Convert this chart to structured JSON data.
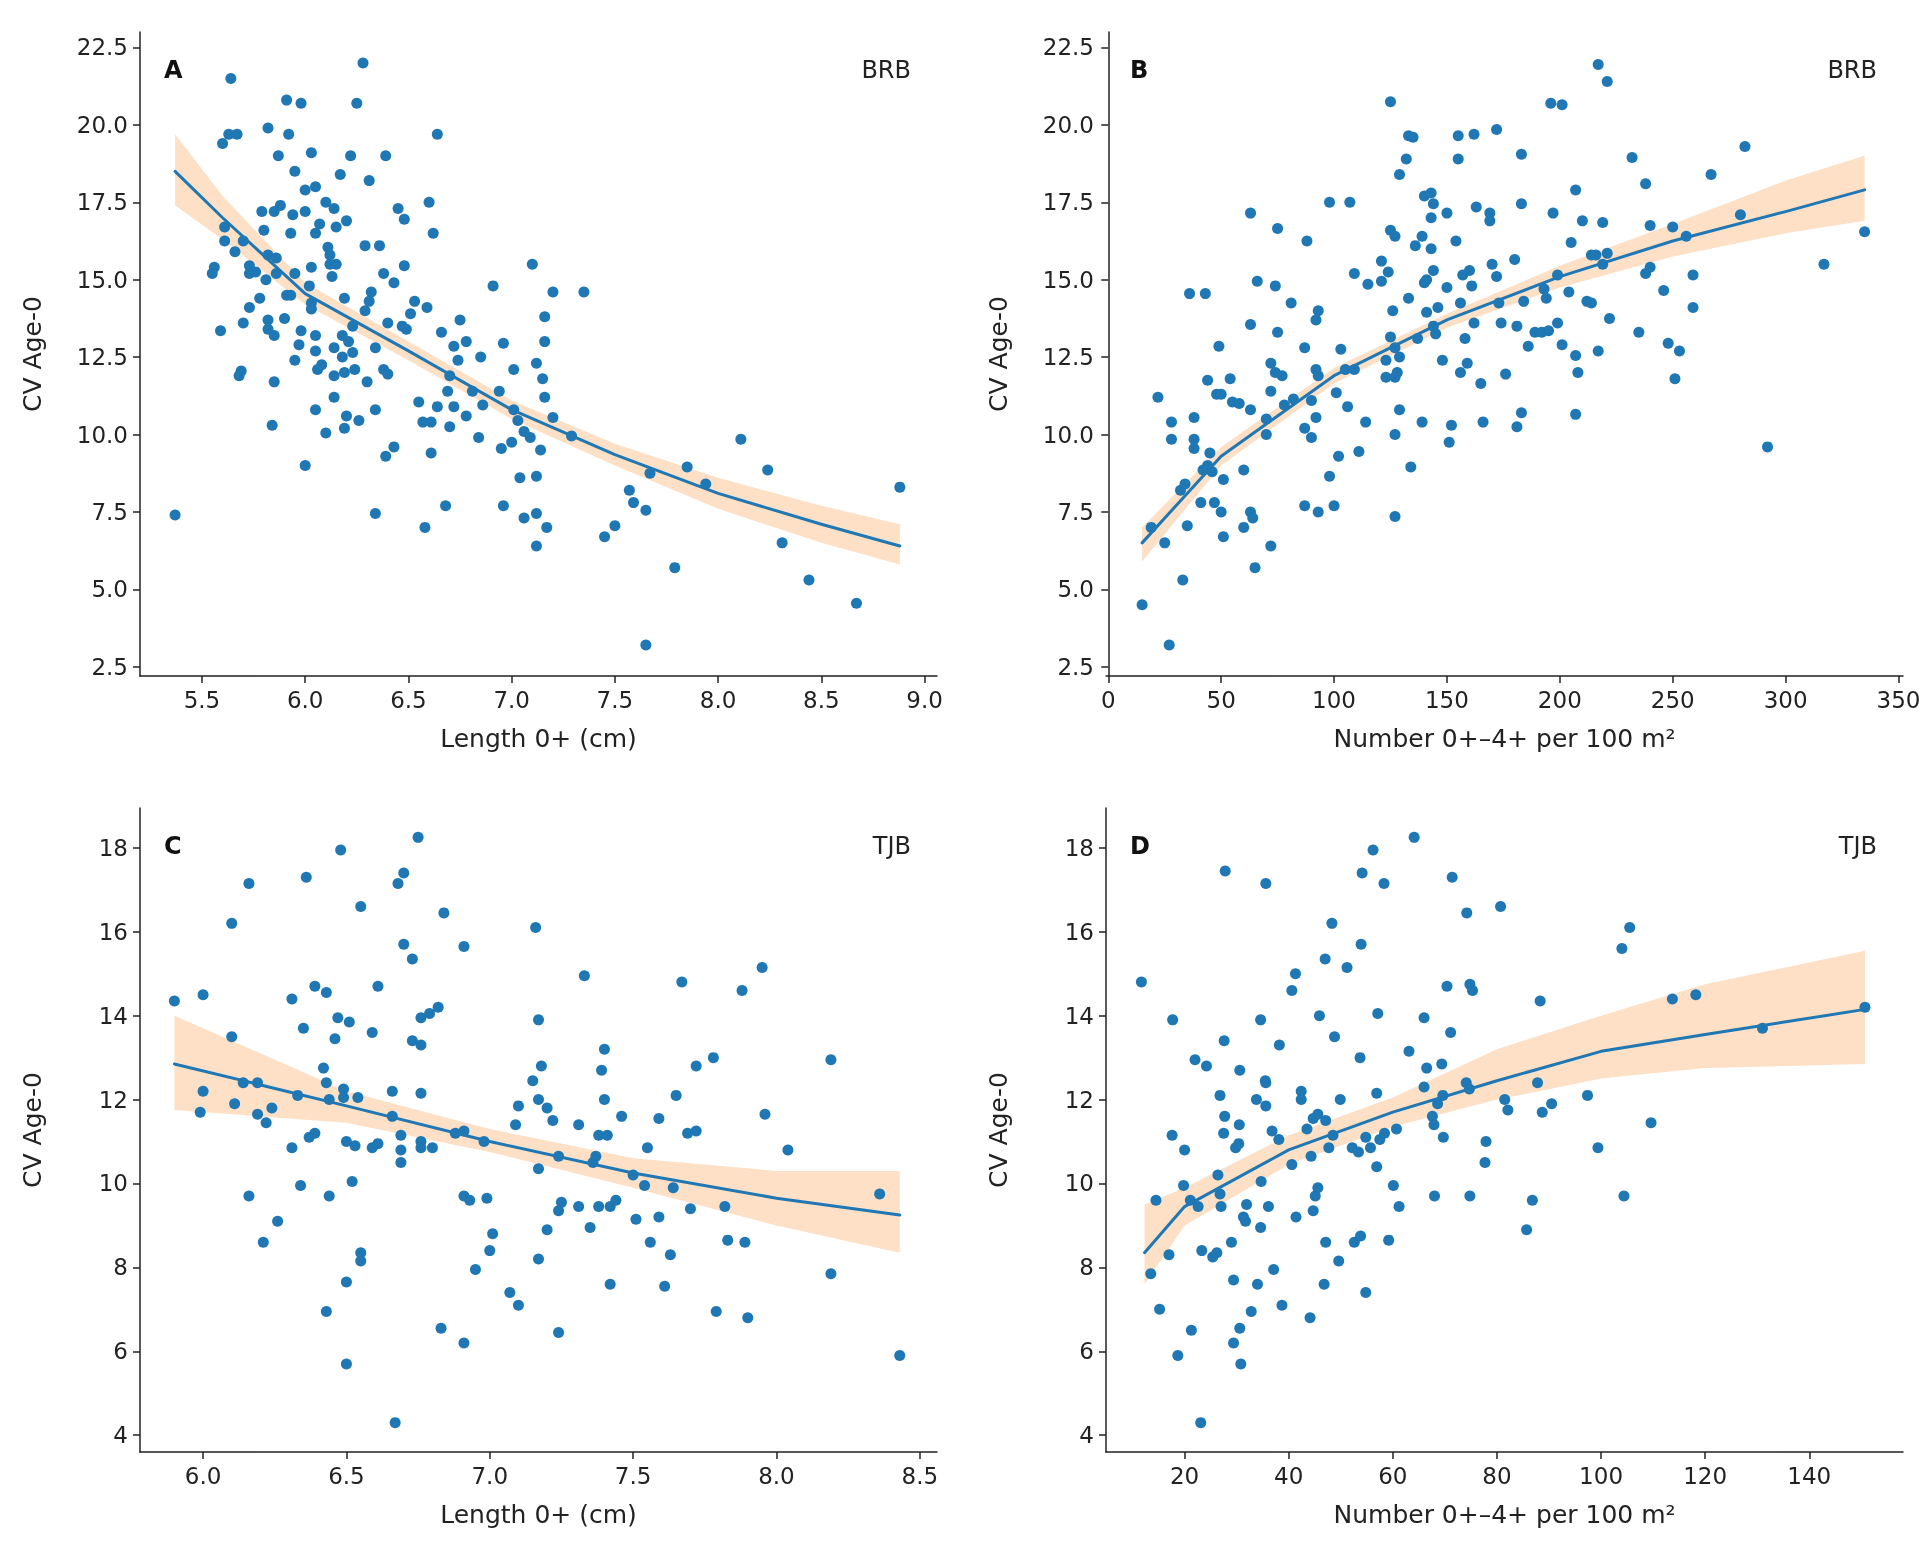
{
  "chart_data": [
    {
      "type": "scatter",
      "title": "A",
      "annotations": [
        "BRB"
      ],
      "xlabel": "Length 0+ (cm)",
      "ylabel": "CV Age-0",
      "xlim": [
        5.2,
        9.06
      ],
      "xticks": [
        5.5,
        {
          "value": 6,
          "label": "6.0"
        },
        6.5,
        {
          "value": 7,
          "label": "7.0"
        },
        7.5,
        {
          "value": 8,
          "label": "8.0"
        },
        8.5,
        {
          "value": 9,
          "label": "9.0"
        }
      ],
      "ylim": [
        2.2,
        23.0
      ],
      "yticks": [
        2.5,
        {
          "value": 5,
          "label": "5.0"
        },
        7.5,
        {
          "value": 10,
          "label": "10.0"
        },
        12.5,
        {
          "value": 15,
          "label": "15.0"
        },
        17.5,
        {
          "value": 20,
          "label": "20.0"
        },
        22.5
      ],
      "series": [
        {
          "type": "scatter",
          "marker": "circle",
          "color": "#1f77b4",
          "x": [
            5.37,
            5.64,
            6.28,
            5.91,
            5.98,
            6.25,
            5.6,
            5.63,
            5.67,
            5.82,
            5.92,
            6.64,
            5.87,
            6.03,
            6.22,
            6.39,
            5.95,
            6.17,
            6.31,
            6.0,
            6.05,
            6.6,
            6.1,
            5.79,
            5.85,
            5.88,
            5.94,
            6.0,
            6.14,
            6.2,
            6.45,
            6.48,
            6.62,
            5.61,
            5.8,
            6.07,
            6.15,
            5.93,
            6.05,
            5.61,
            5.7,
            5.66,
            6.29,
            6.36,
            5.82,
            5.86,
            6.11,
            6.12,
            5.56,
            5.55,
            5.73,
            5.73,
            5.76,
            5.81,
            5.86,
            5.95,
            6.03,
            6.12,
            6.15,
            6.13,
            6.38,
            6.48,
            7.1,
            5.91,
            5.93,
            6.02,
            6.19,
            6.32,
            6.43,
            6.91,
            7.2,
            7.35,
            5.78,
            5.73,
            6.03,
            6.03,
            6.31,
            6.53,
            6.59,
            6.29,
            5.7,
            5.82,
            5.82,
            5.9,
            5.59,
            5.85,
            5.98,
            6.05,
            6.4,
            6.47,
            6.49,
            6.51,
            6.75,
            7.16,
            6.66,
            6.18,
            6.23,
            6.21,
            6.34,
            5.97,
            6.05,
            6.78,
            6.72,
            6.96,
            7.16,
            6.14,
            6.18,
            6.23,
            6.85,
            7.12,
            6.74,
            5.95,
            5.69,
            5.68,
            6.06,
            6.08,
            6.24,
            6.19,
            6.14,
            6.3,
            6.38,
            6.4,
            7.01,
            7.15,
            6.7,
            5.85,
            6.69,
            6.81,
            7.16,
            6.14,
            6.55,
            6.64,
            6.72,
            6.86,
            6.94,
            7.01,
            6.05,
            6.34,
            6.2,
            6.78,
            7.2,
            6.57,
            6.61,
            7.03,
            6.26,
            5.84,
            6.19,
            6.7,
            6.1,
            7.06,
            7.09,
            7.29,
            6.84,
            8.11,
            7.0,
            6.95,
            7.14,
            6.43,
            6.39,
            6.61,
            6.0,
            7.85,
            8.24,
            7.67,
            7.04,
            7.12,
            7.94,
            8.88,
            7.57,
            7.59,
            6.68,
            6.96,
            6.34,
            7.12,
            7.65,
            7.06,
            6.58,
            7.17,
            7.5,
            7.45,
            7.12,
            8.31,
            7.79,
            8.44,
            8.67,
            7.65
          ],
          "values": [
            7.4,
            21.5,
            22.0,
            20.8,
            20.7,
            20.7,
            19.4,
            19.7,
            19.7,
            19.9,
            19.7,
            19.7,
            19.0,
            19.1,
            19.0,
            19.0,
            18.5,
            18.4,
            18.2,
            17.9,
            18.0,
            17.5,
            17.5,
            17.2,
            17.2,
            17.4,
            17.1,
            17.2,
            17.3,
            16.9,
            17.3,
            16.95,
            16.5,
            16.7,
            16.6,
            16.8,
            16.7,
            16.5,
            16.5,
            16.25,
            16.25,
            15.9,
            16.1,
            16.1,
            15.8,
            15.7,
            16.05,
            15.8,
            15.4,
            15.2,
            15.45,
            15.2,
            15.25,
            15.0,
            15.2,
            15.2,
            15.4,
            15.5,
            15.5,
            15.1,
            15.2,
            15.45,
            15.5,
            14.5,
            14.5,
            14.8,
            14.4,
            14.6,
            14.9,
            14.8,
            14.6,
            14.6,
            14.4,
            14.1,
            14.25,
            14.05,
            14.3,
            14.3,
            14.1,
            14.0,
            13.6,
            13.7,
            13.4,
            13.75,
            13.35,
            13.2,
            13.35,
            13.2,
            13.6,
            13.5,
            13.4,
            13.9,
            13.7,
            13.8,
            13.3,
            13.2,
            13.5,
            13.0,
            12.8,
            12.9,
            12.7,
            13.0,
            12.85,
            12.95,
            13.0,
            12.8,
            12.5,
            12.65,
            12.5,
            12.3,
            12.4,
            12.4,
            12.05,
            11.9,
            12.1,
            12.25,
            12.1,
            12.0,
            11.9,
            11.7,
            12.1,
            11.95,
            12.1,
            11.8,
            11.9,
            11.7,
            11.4,
            11.4,
            11.2,
            11.2,
            11.05,
            10.9,
            10.9,
            10.95,
            11.4,
            10.8,
            10.8,
            10.8,
            10.6,
            10.6,
            10.55,
            10.4,
            10.4,
            10.45,
            10.45,
            10.3,
            10.2,
            10.25,
            10.05,
            10.1,
            9.9,
            9.95,
            9.9,
            9.85,
            9.75,
            9.55,
            9.5,
            9.6,
            9.3,
            9.4,
            9.0,
            8.95,
            8.85,
            8.75,
            8.6,
            8.65,
            8.4,
            8.3,
            8.2,
            7.8,
            7.7,
            7.7,
            7.45,
            7.45,
            7.55,
            7.3,
            7.0,
            7.0,
            7.05,
            6.7,
            6.4,
            6.5,
            5.7,
            5.3,
            4.55,
            3.2
          ]
        },
        {
          "type": "line",
          "marker": "none",
          "color": "#1f77b4",
          "x": [
            5.37,
            5.6,
            6.0,
            6.5,
            7.0,
            7.5,
            8.0,
            8.5,
            8.88
          ],
          "values": [
            18.5,
            17.0,
            14.55,
            12.7,
            10.8,
            9.35,
            8.1,
            7.1,
            6.4
          ],
          "lower": [
            17.4,
            16.3,
            14.2,
            12.4,
            10.5,
            9.0,
            7.6,
            6.5,
            5.8
          ],
          "upper": [
            19.7,
            17.7,
            14.9,
            13.0,
            11.1,
            9.7,
            8.6,
            7.7,
            7.1
          ]
        }
      ]
    },
    {
      "type": "scatter",
      "title": "B",
      "annotations": [
        "BRB"
      ],
      "xlabel": "Number 0+–4+ per 100 m²",
      "ylabel": "CV Age-0",
      "xlim": [
        -1,
        352
      ],
      "xticks": [
        0,
        50,
        100,
        150,
        200,
        250,
        300,
        350
      ],
      "ylim": [
        2.2,
        23.0
      ],
      "yticks": [
        2.5,
        {
          "value": 5,
          "label": "5.0"
        },
        7.5,
        {
          "value": 10,
          "label": "10.0"
        },
        12.5,
        {
          "value": 15,
          "label": "15.0"
        },
        17.5,
        {
          "value": 20,
          "label": "20.0"
        },
        22.5
      ],
      "series": [
        {
          "type": "scatter",
          "marker": "circle",
          "color": "#1f77b4",
          "x": [
            15,
            27,
            33,
            19,
            25,
            35,
            22,
            28,
            28,
            38,
            38,
            38,
            36,
            43,
            44,
            49,
            48,
            50,
            54,
            45,
            44,
            42,
            46,
            32,
            34,
            41,
            47,
            50,
            51,
            51,
            60,
            63,
            64,
            60,
            65,
            72,
            63,
            63,
            66,
            58,
            63,
            55,
            70,
            70,
            72,
            72,
            74,
            75,
            74,
            75,
            77,
            78,
            81,
            82,
            87,
            88,
            87,
            87,
            90,
            90,
            92,
            93,
            93,
            92,
            93,
            92,
            98,
            98,
            100,
            101,
            102,
            103,
            105,
            106,
            107,
            109,
            109,
            111,
            114,
            115,
            121,
            121,
            123,
            123,
            124,
            125,
            125,
            127,
            126,
            125,
            127,
            127,
            128,
            129,
            129,
            127,
            127,
            129,
            132,
            133,
            135,
            133,
            134,
            136,
            137,
            139,
            139,
            141,
            140,
            141,
            140,
            143,
            143,
            143,
            144,
            144,
            144,
            145,
            146,
            150,
            150,
            148,
            151,
            152,
            154,
            156,
            155,
            155,
            156,
            157,
            158,
            159,
            160,
            161,
            162,
            162,
            163,
            165,
            166,
            169,
            169,
            170,
            172,
            172,
            173,
            174,
            176,
            180,
            181,
            183,
            183,
            184,
            183,
            181,
            186,
            189,
            192,
            195,
            193,
            194,
            196,
            201,
            197,
            199,
            199,
            201,
            204,
            205,
            207,
            207,
            208,
            207,
            210,
            212,
            214,
            214,
            217,
            217,
            221,
            219,
            219,
            222,
            216,
            221,
            232,
            235,
            238,
            238,
            240,
            240,
            246,
            248,
            250,
            251,
            253,
            256,
            259,
            259,
            267,
            280,
            282,
            292,
            317,
            335
          ],
          "values": [
            4.5,
            3.2,
            5.3,
            7.0,
            6.5,
            7.05,
            11.2,
            10.4,
            9.85,
            10.55,
            9.85,
            9.55,
            14.55,
            14.55,
            11.75,
            12.85,
            11.3,
            11.3,
            11.8,
            9.4,
            9.0,
            8.85,
            8.8,
            8.2,
            8.4,
            7.8,
            7.8,
            7.5,
            8.55,
            6.7,
            7.0,
            7.5,
            7.3,
            8.85,
            5.7,
            6.4,
            17.15,
            13.55,
            14.95,
            11.0,
            10.8,
            11.05,
            10.5,
            10.0,
            11.4,
            12.3,
            12.0,
            16.65,
            14.8,
            13.3,
            11.9,
            10.95,
            14.25,
            11.15,
            12.8,
            16.25,
            7.7,
            10.2,
            11.1,
            9.9,
            12.1,
            11.9,
            7.5,
            13.7,
            14.0,
            10.55,
            17.5,
            8.65,
            7.7,
            11.35,
            9.3,
            12.75,
            12.1,
            10.9,
            17.5,
            15.2,
            12.1,
            9.45,
            10.4,
            14.85,
            15.6,
            14.95,
            12.4,
            11.85,
            15.25,
            16.6,
            20.75,
            16.4,
            14.0,
            13.15,
            12.8,
            11.85,
            12.0,
            12.5,
            10.8,
            10.0,
            7.35,
            18.4,
            18.9,
            19.65,
            19.6,
            14.4,
            8.95,
            16.1,
            13.1,
            10.4,
            16.4,
            15.0,
            14.9,
            13.95,
            17.7,
            17.8,
            17.0,
            16.0,
            17.45,
            15.3,
            13.5,
            13.25,
            14.1,
            17.15,
            14.75,
            12.4,
            9.75,
            10.3,
            16.25,
            14.25,
            19.65,
            18.9,
            12.0,
            15.15,
            13.1,
            12.3,
            15.3,
            14.8,
            19.7,
            13.6,
            17.35,
            11.65,
            10.4,
            17.15,
            16.9,
            15.5,
            15.1,
            19.85,
            14.25,
            13.6,
            11.95,
            15.65,
            13.5,
            19.05,
            17.45,
            14.3,
            10.7,
            10.25,
            12.85,
            13.3,
            13.3,
            13.35,
            14.7,
            14.4,
            20.7,
            20.65,
            17.15,
            15.15,
            13.6,
            12.9,
            14.6,
            16.2,
            17.9,
            12.55,
            12.0,
            10.65,
            16.9,
            14.3,
            14.25,
            15.8,
            12.7,
            21.95,
            21.4,
            16.85,
            15.5,
            13.75,
            15.8,
            15.85,
            18.95,
            13.3,
            18.1,
            15.2,
            15.4,
            16.75,
            14.65,
            12.95,
            16.7,
            11.8,
            12.7,
            16.4,
            15.15,
            14.1,
            18.4,
            17.1,
            19.3,
            9.6,
            15.5,
            16.55
          ]
        },
        {
          "type": "line",
          "marker": "none",
          "color": "#1f77b4",
          "x": [
            15,
            50,
            100,
            150,
            200,
            250,
            300,
            335
          ],
          "values": [
            6.5,
            9.3,
            11.9,
            13.7,
            15.1,
            16.25,
            17.2,
            17.9
          ],
          "lower": [
            5.9,
            9.0,
            11.65,
            13.45,
            14.75,
            15.75,
            16.5,
            16.9
          ],
          "upper": [
            7.0,
            9.6,
            12.15,
            13.9,
            15.45,
            16.8,
            18.2,
            19.0
          ]
        }
      ]
    },
    {
      "type": "scatter",
      "title": "C",
      "annotations": [
        "TJB"
      ],
      "xlabel": "Length 0+ (cm)",
      "ylabel": "CV Age-0",
      "xlim": [
        5.78,
        8.56
      ],
      "xticks": [
        {
          "value": 6,
          "label": "6.0"
        },
        6.5,
        {
          "value": 7,
          "label": "7.0"
        },
        7.5,
        {
          "value": 8,
          "label": "8.0"
        },
        8.5
      ],
      "ylim": [
        3.6,
        18.95
      ],
      "yticks": [
        4,
        6,
        8,
        10,
        12,
        14,
        16,
        18
      ],
      "series": [
        {
          "type": "scatter",
          "marker": "circle",
          "color": "#1f77b4",
          "x": [
            5.9,
            6.0,
            6.0,
            5.99,
            6.1,
            6.16,
            6.1,
            6.11,
            6.14,
            6.19,
            6.19,
            6.22,
            6.24,
            6.16,
            6.21,
            6.26,
            6.31,
            6.33,
            6.31,
            6.34,
            6.35,
            6.36,
            6.37,
            6.39,
            6.39,
            6.42,
            6.43,
            6.43,
            6.44,
            6.46,
            6.48,
            6.47,
            6.51,
            6.49,
            6.49,
            6.5,
            6.53,
            6.54,
            6.44,
            6.52,
            6.43,
            6.5,
            6.5,
            6.55,
            6.55,
            6.55,
            6.59,
            6.61,
            6.59,
            6.61,
            6.66,
            6.66,
            6.69,
            6.69,
            6.69,
            6.68,
            6.7,
            6.7,
            6.73,
            6.73,
            6.76,
            6.76,
            6.79,
            6.82,
            6.75,
            6.76,
            6.76,
            6.76,
            6.8,
            6.84,
            6.83,
            6.91,
            6.91,
            6.88,
            6.91,
            6.91,
            6.93,
            6.98,
            6.99,
            7.01,
            7.0,
            6.95,
            7.07,
            7.1,
            7.09,
            7.1,
            7.15,
            7.16,
            7.17,
            7.18,
            7.17,
            7.2,
            7.22,
            7.17,
            7.2,
            7.17,
            7.24,
            7.24,
            7.24,
            7.25,
            7.31,
            7.31,
            7.33,
            7.35,
            7.36,
            7.37,
            7.38,
            7.38,
            7.41,
            7.39,
            7.4,
            7.4,
            7.42,
            7.44,
            7.42,
            7.46,
            7.5,
            7.51,
            7.54,
            7.55,
            7.56,
            7.59,
            7.59,
            7.63,
            7.61,
            7.64,
            7.65,
            7.67,
            7.69,
            7.72,
            7.7,
            7.72,
            7.78,
            7.79,
            7.82,
            7.83,
            7.88,
            7.89,
            7.9,
            7.95,
            7.96,
            8.04,
            8.19,
            8.19,
            8.36,
            8.43,
            6.67
          ],
          "values": [
            14.35,
            14.5,
            12.2,
            11.7,
            16.2,
            17.15,
            13.5,
            11.9,
            12.4,
            12.4,
            11.65,
            11.45,
            11.8,
            9.7,
            8.6,
            9.1,
            14.4,
            12.1,
            10.85,
            9.95,
            13.7,
            17.3,
            11.1,
            11.2,
            14.7,
            12.75,
            14.55,
            12.4,
            12.0,
            13.45,
            17.95,
            13.95,
            13.85,
            12.25,
            12.05,
            11.0,
            10.9,
            12.05,
            9.7,
            10.05,
            6.95,
            7.65,
            5.7,
            8.35,
            8.15,
            16.6,
            13.6,
            14.7,
            10.85,
            10.95,
            12.2,
            11.6,
            10.5,
            11.15,
            10.8,
            17.15,
            17.4,
            15.7,
            15.35,
            13.4,
            13.3,
            13.95,
            14.05,
            14.2,
            18.25,
            12.15,
            11.0,
            10.85,
            10.85,
            16.45,
            6.55,
            15.65,
            11.25,
            11.2,
            6.2,
            9.7,
            9.6,
            11.0,
            9.65,
            8.8,
            8.4,
            7.95,
            7.4,
            7.1,
            11.4,
            11.85,
            12.45,
            16.1,
            13.9,
            12.8,
            12.0,
            11.8,
            11.5,
            10.35,
            8.9,
            8.2,
            6.45,
            10.65,
            9.35,
            9.55,
            11.4,
            9.45,
            14.95,
            8.95,
            10.5,
            10.65,
            9.45,
            11.15,
            11.15,
            12.7,
            12.0,
            13.2,
            9.45,
            9.6,
            7.6,
            11.6,
            10.2,
            9.15,
            9.95,
            10.85,
            8.6,
            9.2,
            11.55,
            8.3,
            7.55,
            9.9,
            12.1,
            14.8,
            11.2,
            11.25,
            9.4,
            12.8,
            13.0,
            6.95,
            9.45,
            8.65,
            14.6,
            8.6,
            6.8,
            15.15,
            11.65,
            10.8,
            12.95,
            7.85,
            9.75,
            5.9,
            4.3
          ]
        },
        {
          "type": "line",
          "marker": "none",
          "color": "#1f77b4",
          "x": [
            5.9,
            6.5,
            7.0,
            7.5,
            8.0,
            8.43
          ],
          "values": [
            12.85,
            11.85,
            11.0,
            10.25,
            9.65,
            9.25
          ],
          "lower": [
            11.75,
            11.45,
            10.75,
            9.9,
            9.0,
            8.35
          ],
          "upper": [
            14.0,
            12.2,
            11.3,
            10.6,
            10.3,
            10.3
          ]
        }
      ]
    },
    {
      "type": "scatter",
      "title": "D",
      "annotations": [
        "TJB"
      ],
      "xlabel": "Number 0+–4+ per 100 m²",
      "ylabel": "CV Age-0",
      "xlim": [
        4.9,
        158
      ],
      "xticks": [
        20,
        40,
        60,
        80,
        100,
        120,
        140
      ],
      "ylim": [
        3.6,
        18.95
      ],
      "yticks": [
        4,
        6,
        8,
        10,
        12,
        14,
        16,
        18
      ],
      "series": [
        {
          "type": "scatter",
          "marker": "circle",
          "color": "#1f77b4",
          "x": [
            11.7,
            13.5,
            15.2,
            14.5,
            17.7,
            17.0,
            17.6,
            18.7,
            20.0,
            19.8,
            21.1,
            21.3,
            22.0,
            22.6,
            23.1,
            23.3,
            24.2,
            25.4,
            26.2,
            26.4,
            26.8,
            27.0,
            26.8,
            27.7,
            27.5,
            27.8,
            27.6,
            29.0,
            29.4,
            29.4,
            29.8,
            30.4,
            30.6,
            30.5,
            30.6,
            30.8,
            31.3,
            31.7,
            31.9,
            32.8,
            33.8,
            34.6,
            34.7,
            34.6,
            34.0,
            35.5,
            35.6,
            35.6,
            35.6,
            36.1,
            36.8,
            37.1,
            38.1,
            38.2,
            38.7,
            40.6,
            40.6,
            41.3,
            41.4,
            42.4,
            42.4,
            43.5,
            44.1,
            44.3,
            44.7,
            45.6,
            44.7,
            45.1,
            45.6,
            45.9,
            47.0,
            47.1,
            46.8,
            47.1,
            47.7,
            48.3,
            48.8,
            48.5,
            49.6,
            49.9,
            51.2,
            52.2,
            52.6,
            53.4,
            53.7,
            53.9,
            54.1,
            53.8,
            54.8,
            54.8,
            55.7,
            56.2,
            56.9,
            56.9,
            57.1,
            57.5,
            58.3,
            58.4,
            59.2,
            60.1,
            60.7,
            61.2,
            63.1,
            64.1,
            66.0,
            66.0,
            66.5,
            67.6,
            67.9,
            68.0,
            68.6,
            69.4,
            69.6,
            69.7,
            70.4,
            71.1,
            71.4,
            74.2,
            74.1,
            74.8,
            75.3,
            74.8,
            74.7,
            77.9,
            77.7,
            80.7,
            81.5,
            82.1,
            85.7,
            86.8,
            87.8,
            88.3,
            88.7,
            90.5,
            97.4,
            99.4,
            104.0,
            104.4,
            105.5,
            109.6,
            113.7,
            118.2,
            131.0,
            150.7
          ],
          "values": [
            14.8,
            7.85,
            7.0,
            9.6,
            13.9,
            8.3,
            11.15,
            5.9,
            10.8,
            9.95,
            9.6,
            6.5,
            12.95,
            9.45,
            4.3,
            8.4,
            12.8,
            8.25,
            8.35,
            10.2,
            9.75,
            9.45,
            12.1,
            11.6,
            11.2,
            17.45,
            13.4,
            8.6,
            7.7,
            6.2,
            10.85,
            10.95,
            12.7,
            11.4,
            6.55,
            5.7,
            9.2,
            9.1,
            9.5,
            6.95,
            12.0,
            13.9,
            10.05,
            8.95,
            7.6,
            12.45,
            12.4,
            11.85,
            17.15,
            9.45,
            11.25,
            7.95,
            11.05,
            13.3,
            7.1,
            14.6,
            10.45,
            15.0,
            9.2,
            12.2,
            12.0,
            11.3,
            6.8,
            10.65,
            11.55,
            11.65,
            9.35,
            9.7,
            9.9,
            14.0,
            15.35,
            8.6,
            7.6,
            11.5,
            10.85,
            16.2,
            13.5,
            11.15,
            8.15,
            12.0,
            15.15,
            10.85,
            8.6,
            10.75,
            13.0,
            15.7,
            17.4,
            8.75,
            11.1,
            7.4,
            10.85,
            17.95,
            12.15,
            10.4,
            14.05,
            11.05,
            17.15,
            11.2,
            8.65,
            9.95,
            11.3,
            9.45,
            13.15,
            18.25,
            12.3,
            13.95,
            12.75,
            11.6,
            11.4,
            9.7,
            11.9,
            12.85,
            12.1,
            11.1,
            14.7,
            13.6,
            17.3,
            16.45,
            12.4,
            14.75,
            14.6,
            9.7,
            12.25,
            11.0,
            10.5,
            16.6,
            12.0,
            11.75,
            8.9,
            9.6,
            12.4,
            14.35,
            11.7,
            11.9,
            12.1,
            10.85,
            15.6,
            9.7,
            16.1,
            11.45,
            14.4,
            14.5,
            13.7,
            14.2
          ]
        },
        {
          "type": "line",
          "marker": "none",
          "color": "#1f77b4",
          "x": [
            12.3,
            20,
            40,
            60,
            80,
            100,
            120,
            150.7
          ],
          "values": [
            8.35,
            9.45,
            10.8,
            11.7,
            12.45,
            13.15,
            13.55,
            14.15
          ],
          "lower": [
            7.6,
            9.0,
            10.45,
            11.35,
            12.0,
            12.5,
            12.75,
            12.85
          ],
          "upper": [
            9.5,
            9.9,
            11.15,
            12.05,
            13.2,
            14.0,
            14.75,
            15.55
          ]
        }
      ]
    }
  ]
}
